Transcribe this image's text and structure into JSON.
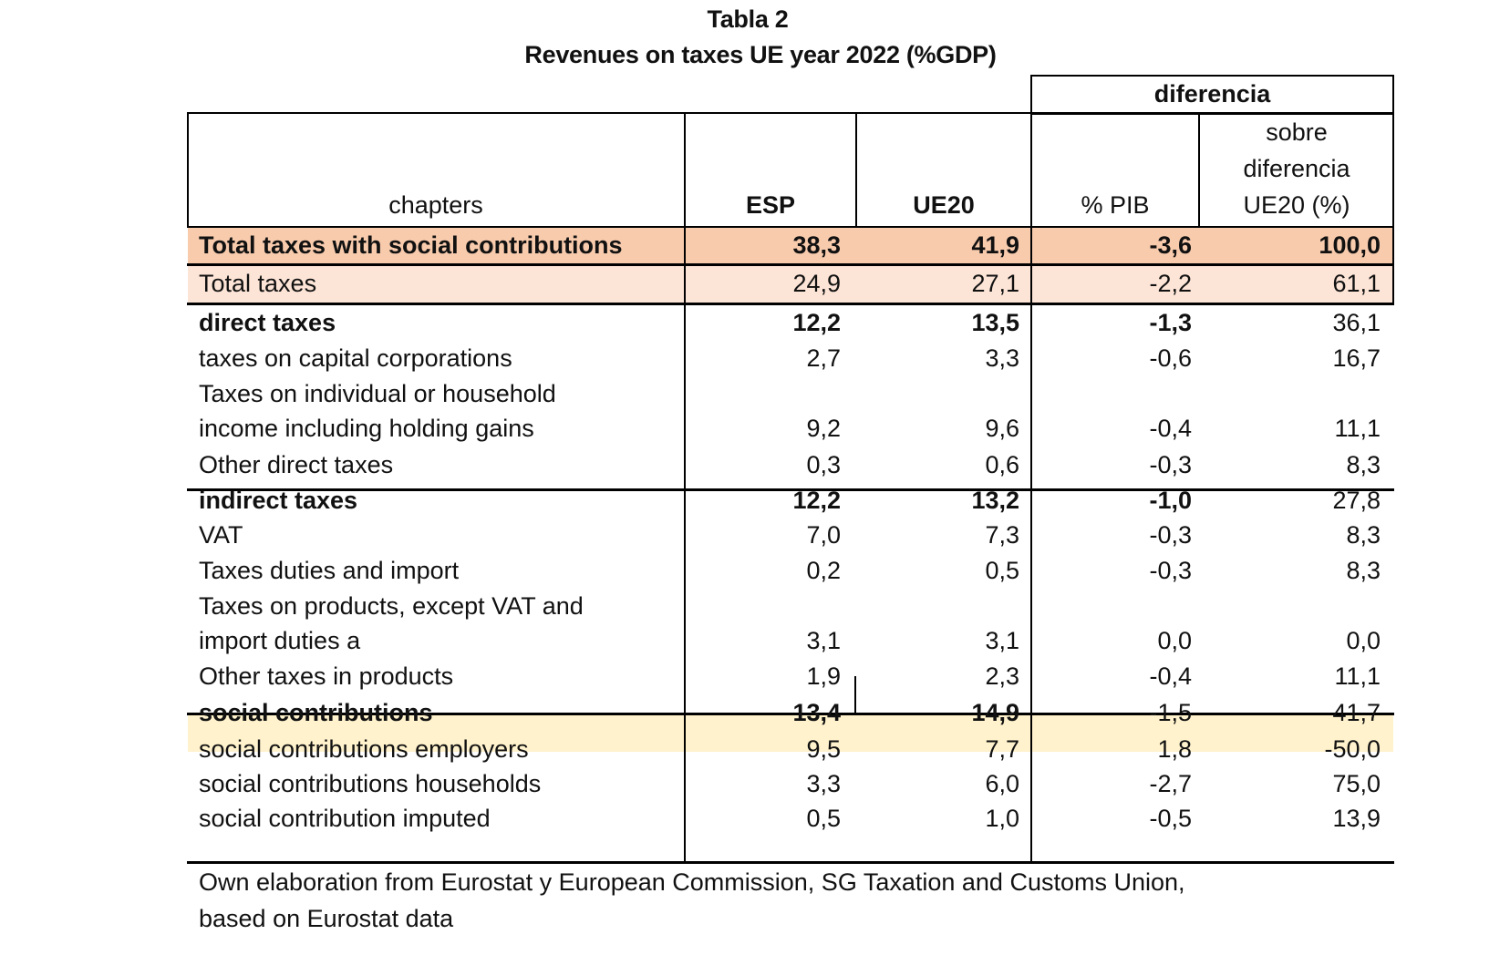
{
  "title": "Tabla 2",
  "subtitle": "Revenues on taxes UE year 2022 (%GDP)",
  "header": {
    "group_label": "diferencia",
    "chapters": "chapters",
    "esp": "ESP",
    "ue20": "UE20",
    "pib": "% PIB",
    "sobre_lines": [
      "sobre",
      "diferencia",
      "UE20 (%)"
    ]
  },
  "colors": {
    "total_with_social": "#F8CBAD",
    "total_taxes": "#FCE4D6",
    "social_contributions": "#FFF2CC"
  },
  "rows": [
    {
      "label": [
        "Total taxes with social contributions"
      ],
      "esp": "38,3",
      "ue20": "41,9",
      "pib": "-3,6",
      "sobre": "100,0",
      "bold": true
    },
    {
      "label": [
        "Total taxes"
      ],
      "esp": "24,9",
      "ue20": "27,1",
      "pib": "-2,2",
      "sobre": "61,1"
    },
    {
      "label": [
        "direct taxes"
      ],
      "esp": "12,2",
      "ue20": "13,5",
      "pib": "-1,3",
      "sobre": "36,1",
      "bold": true
    },
    {
      "label": [
        "taxes on capital corporations"
      ],
      "esp": "2,7",
      "ue20": "3,3",
      "pib": "-0,6",
      "sobre": "16,7"
    },
    {
      "label": [
        "Taxes on individual or household",
        "income including holding gains"
      ],
      "esp": "9,2",
      "ue20": "9,6",
      "pib": "-0,4",
      "sobre": "11,1"
    },
    {
      "label": [
        "Other direct taxes"
      ],
      "esp": "0,3",
      "ue20": "0,6",
      "pib": "-0,3",
      "sobre": "8,3"
    },
    {
      "label": [
        "indirect taxes"
      ],
      "esp": "12,2",
      "ue20": "13,2",
      "pib": "-1,0",
      "sobre": "27,8",
      "bold": true
    },
    {
      "label": [
        "VAT"
      ],
      "esp": "7,0",
      "ue20": "7,3",
      "pib": "-0,3",
      "sobre": "8,3"
    },
    {
      "label": [
        "Taxes duties and import"
      ],
      "esp": "0,2",
      "ue20": "0,5",
      "pib": "-0,3",
      "sobre": "8,3"
    },
    {
      "label": [
        "Taxes on products, except VAT and",
        "import duties a"
      ],
      "esp": "3,1",
      "ue20": "3,1",
      "pib": "0,0",
      "sobre": "0,0"
    },
    {
      "label": [
        "Other taxes in products"
      ],
      "esp": "1,9",
      "ue20": "2,3",
      "pib": "-0,4",
      "sobre": "11,1"
    },
    {
      "label": [
        "social contributions"
      ],
      "esp": "13,4",
      "ue20": "14,9",
      "pib": "-1,5",
      "sobre": "41,7",
      "bold": true
    },
    {
      "label": [
        "social contributions employers"
      ],
      "esp": "9,5",
      "ue20": "7,7",
      "pib": "1,8",
      "sobre": "-50,0"
    },
    {
      "label": [
        "social contributions households"
      ],
      "esp": "3,3",
      "ue20": "6,0",
      "pib": "-2,7",
      "sobre": "75,0"
    },
    {
      "label": [
        "social contribution imputed"
      ],
      "esp": "0,5",
      "ue20": "1,0",
      "pib": "-0,5",
      "sobre": "13,9"
    }
  ],
  "footer": [
    "Own elaboration from Eurostat y European Commission, SG Taxation and Customs Union,",
    "based on Eurostat data"
  ]
}
